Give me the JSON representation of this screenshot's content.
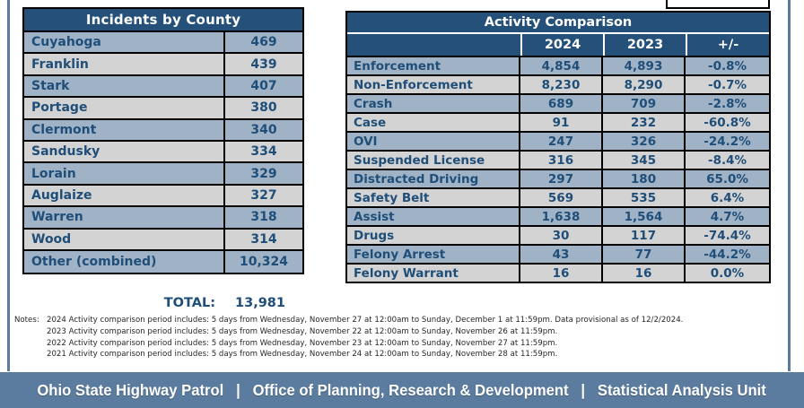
{
  "county_table": {
    "title": "Incidents by County",
    "rows": [
      {
        "name": "Cuyahoga",
        "value": "469"
      },
      {
        "name": "Franklin",
        "value": "439"
      },
      {
        "name": "Stark",
        "value": "407"
      },
      {
        "name": "Portage",
        "value": "380"
      },
      {
        "name": "Clermont",
        "value": "340"
      },
      {
        "name": "Sandusky",
        "value": "334"
      },
      {
        "name": "Lorain",
        "value": "329"
      },
      {
        "name": "Auglaize",
        "value": "327"
      },
      {
        "name": "Warren",
        "value": "318"
      },
      {
        "name": "Wood",
        "value": "314"
      },
      {
        "name": "Other (combined)",
        "value": "10,324"
      }
    ],
    "total_label": "TOTAL:",
    "total_value": "13,981"
  },
  "activity_table": {
    "title": "Activity Comparison",
    "columns": [
      "2024",
      "2023",
      "+/-"
    ],
    "rows": [
      {
        "label": "Enforcement",
        "y2024": "4,854",
        "y2023": "4,893",
        "change": "-0.8%"
      },
      {
        "label": "Non-Enforcement",
        "y2024": "8,230",
        "y2023": "8,290",
        "change": "-0.7%"
      },
      {
        "label": "Crash",
        "y2024": "689",
        "y2023": "709",
        "change": "-2.8%"
      },
      {
        "label": "Case",
        "y2024": "91",
        "y2023": "232",
        "change": "-60.8%"
      },
      {
        "label": "OVI",
        "y2024": "247",
        "y2023": "326",
        "change": "-24.2%"
      },
      {
        "label": "Suspended License",
        "y2024": "316",
        "y2023": "345",
        "change": "-8.4%"
      },
      {
        "label": "Distracted Driving",
        "y2024": "297",
        "y2023": "180",
        "change": "65.0%"
      },
      {
        "label": "Safety Belt",
        "y2024": "569",
        "y2023": "535",
        "change": "6.4%"
      },
      {
        "label": "Assist",
        "y2024": "1,638",
        "y2023": "1,564",
        "change": "4.7%"
      },
      {
        "label": "Drugs",
        "y2024": "30",
        "y2023": "117",
        "change": "-74.4%"
      },
      {
        "label": "Felony Arrest",
        "y2024": "43",
        "y2023": "77",
        "change": "-44.2%"
      },
      {
        "label": "Felony Warrant",
        "y2024": "16",
        "y2023": "16",
        "change": "0.0%"
      }
    ]
  },
  "notes": {
    "label": "Notes:",
    "lines": [
      "2024 Activity comparison period includes: 5 days from Wednesday, November 27 at 12:00am to Sunday, December 1 at 11:59pm. Data provisional as of 12/2/2024.",
      "2023 Activity comparison period includes: 5 days from Wednesday, November 22 at 12:00am to Sunday, November 26 at 11:59pm.",
      "2022 Activity comparison period includes: 5 days from Wednesday, November 23 at 12:00am to Sunday, November 27 at 11:59pm.",
      "2021 Activity comparison period includes: 5 days from Wednesday, November 24 at 12:00am to Sunday, November 28 at 11:59pm."
    ]
  },
  "footer": {
    "text": "Ohio State Highway Patrol   |   Office of Planning, Research & Development   |   Statistical Analysis Unit"
  },
  "colors": {
    "header_navy": "#24507A",
    "row_blue": "#A0B3C6",
    "row_gray": "#D3D3D3",
    "text_navy": "#1F4E79",
    "band_slate": "#5B7C9E"
  }
}
